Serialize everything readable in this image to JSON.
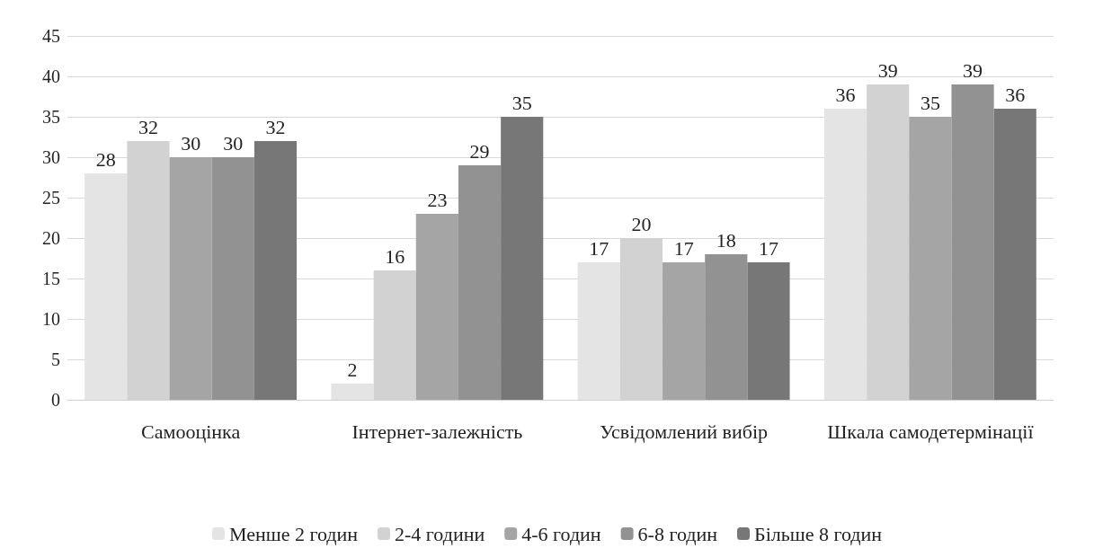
{
  "chart_data": {
    "type": "bar",
    "categories": [
      "Самооцінка",
      "Інтернет-залежність",
      "Усвідомлений вибір",
      "Шкала самодетермінації"
    ],
    "series": [
      {
        "name": "Менше 2 годин",
        "color": "#e4e4e4",
        "values": [
          28,
          2,
          17,
          36
        ]
      },
      {
        "name": "2-4 години",
        "color": "#d2d2d2",
        "values": [
          32,
          16,
          20,
          39
        ]
      },
      {
        "name": "4-6 годин",
        "color": "#a5a5a5",
        "values": [
          30,
          23,
          17,
          35
        ]
      },
      {
        "name": "6-8 годин",
        "color": "#929292",
        "values": [
          30,
          29,
          18,
          39
        ]
      },
      {
        "name": "Більше 8 годин",
        "color": "#777777",
        "values": [
          32,
          35,
          17,
          36
        ]
      }
    ],
    "ylim": [
      0,
      45
    ],
    "yticks": [
      0,
      5,
      10,
      15,
      20,
      25,
      30,
      35,
      40,
      45
    ],
    "grid": "y",
    "legend": "bottom",
    "data_labels": true
  }
}
